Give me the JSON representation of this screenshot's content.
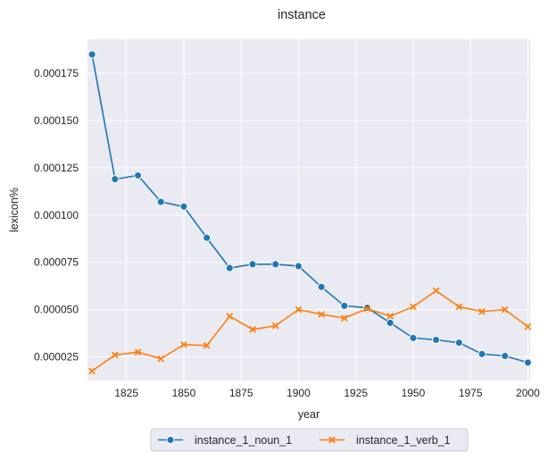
{
  "chart_data": {
    "type": "line",
    "title": "instance",
    "xlabel": "year",
    "ylabel": "lexicon%",
    "xlim": [
      1808,
      2001
    ],
    "ylim": [
      1.25e-05,
      0.000193
    ],
    "xticks": [
      1825,
      1850,
      1875,
      1900,
      1925,
      1950,
      1975,
      2000
    ],
    "yticks": [
      2.5e-05,
      5e-05,
      7.5e-05,
      0.0001,
      0.000125,
      0.00015,
      0.000175
    ],
    "ytick_labels": [
      "0.000025",
      "0.000050",
      "0.000075",
      "0.000100",
      "0.000125",
      "0.000150",
      "0.000175"
    ],
    "grid": true,
    "legend_position": "bottom-center",
    "x": [
      1810,
      1820,
      1830,
      1840,
      1850,
      1860,
      1870,
      1880,
      1890,
      1900,
      1910,
      1920,
      1930,
      1940,
      1950,
      1960,
      1970,
      1980,
      1990,
      2000
    ],
    "series": [
      {
        "name": "instance_1_noun_1",
        "color": "#1f77b4",
        "marker": "circle",
        "values": [
          0.000185,
          0.000119,
          0.000121,
          0.000107,
          0.0001045,
          8.8e-05,
          7.2e-05,
          7.4e-05,
          7.4e-05,
          7.3e-05,
          6.2e-05,
          5.2e-05,
          5.1e-05,
          4.3e-05,
          3.5e-05,
          3.4e-05,
          3.25e-05,
          2.65e-05,
          2.55e-05,
          2.2e-05
        ]
      },
      {
        "name": "instance_1_verb_1",
        "color": "#ff7f0e",
        "marker": "x",
        "values": [
          1.75e-05,
          2.6e-05,
          2.75e-05,
          2.4e-05,
          3.15e-05,
          3.1e-05,
          4.65e-05,
          3.95e-05,
          4.15e-05,
          5e-05,
          4.75e-05,
          4.55e-05,
          5.05e-05,
          4.65e-05,
          5.15e-05,
          6e-05,
          5.15e-05,
          4.9e-05,
          5e-05,
          4.1e-05
        ]
      }
    ]
  }
}
